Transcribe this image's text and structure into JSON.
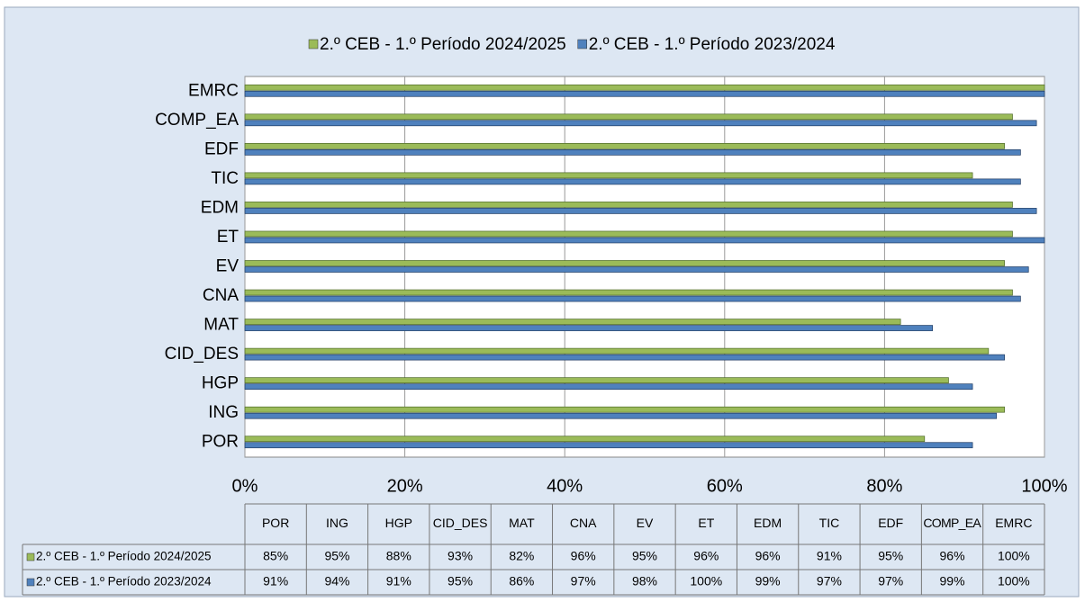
{
  "chart_data": {
    "type": "bar",
    "orientation": "horizontal",
    "categories": [
      "POR",
      "ING",
      "HGP",
      "CID_DES",
      "MAT",
      "CNA",
      "EV",
      "ET",
      "EDM",
      "TIC",
      "EDF",
      "COMP_EA",
      "EMRC"
    ],
    "series": [
      {
        "name": "2.º CEB - 1.º Período 2024/2025",
        "color": "#9bbb59",
        "values": [
          85,
          95,
          88,
          93,
          82,
          96,
          95,
          96,
          96,
          91,
          95,
          96,
          100
        ],
        "value_labels": [
          "85%",
          "95%",
          "88%",
          "93%",
          "82%",
          "96%",
          "95%",
          "96%",
          "96%",
          "91%",
          "95%",
          "96%",
          "100%"
        ]
      },
      {
        "name": "2.º CEB - 1.º Período 2023/2024",
        "color": "#4f81bd",
        "values": [
          91,
          94,
          91,
          95,
          86,
          97,
          98,
          100,
          99,
          97,
          97,
          99,
          100
        ],
        "value_labels": [
          "91%",
          "94%",
          "91%",
          "95%",
          "86%",
          "97%",
          "98%",
          "100%",
          "99%",
          "97%",
          "97%",
          "99%",
          "100%"
        ]
      }
    ],
    "xlim": [
      0,
      100
    ],
    "xticks": [
      {
        "value": 0,
        "label": "0%"
      },
      {
        "value": 20,
        "label": "20%"
      },
      {
        "value": 40,
        "label": "40%"
      },
      {
        "value": 60,
        "label": "60%"
      },
      {
        "value": 80,
        "label": "80%"
      },
      {
        "value": 100,
        "label": "100%"
      }
    ],
    "grid": true,
    "legend": "top",
    "data_table": true
  }
}
